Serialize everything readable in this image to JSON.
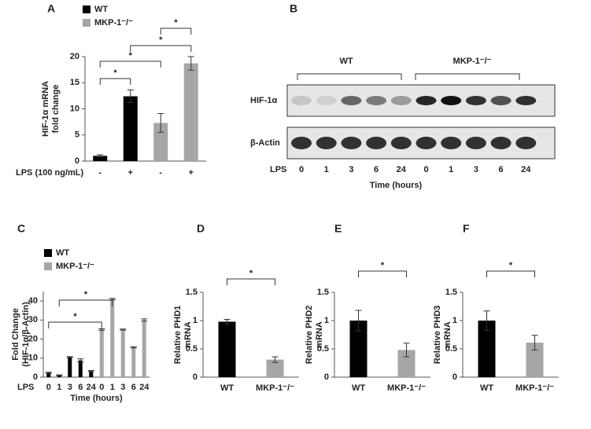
{
  "chart_data": [
    {
      "type": "bar",
      "panel_label": "A",
      "ylabel": [
        "HIF-1α mRNA",
        "fold change"
      ],
      "x_label": "LPS (100 ng/mL)",
      "categories": [
        "-",
        "+",
        "-",
        "+"
      ],
      "series": [
        {
          "name": "WT",
          "color": "#000000",
          "values": [
            1.0,
            12.4,
            null,
            null
          ],
          "errors": [
            0.2,
            1.2,
            null,
            null
          ]
        },
        {
          "name": "MKP-1⁻/⁻",
          "color": "#a6a6a6",
          "values": [
            null,
            null,
            7.3,
            18.7
          ],
          "errors": [
            null,
            null,
            1.8,
            1.3
          ]
        }
      ],
      "ylim": [
        0,
        20
      ],
      "yticks": [
        0,
        5,
        10,
        15,
        20
      ],
      "annotations": [
        "*",
        "*",
        "*",
        "*"
      ]
    },
    {
      "type": "blot",
      "panel_label": "B",
      "groups": [
        "WT",
        "MKP-1⁻/⁻"
      ],
      "rows": [
        "HIF-1α",
        "β-Actin"
      ],
      "x_label": "LPS",
      "lanes": [
        "0",
        "1",
        "3",
        "6",
        "24",
        "0",
        "1",
        "3",
        "6",
        "24"
      ],
      "xlabel": "Time (hours)"
    },
    {
      "type": "bar",
      "panel_label": "C",
      "ylabel": [
        "Fold Change",
        "(HIF-1α/β-Actin)"
      ],
      "x_label": "LPS",
      "xlabel": "Time (hours)",
      "categories": [
        "0",
        "1",
        "3",
        "6",
        "24",
        "0",
        "1",
        "3",
        "6",
        "24"
      ],
      "series": [
        {
          "name": "WT",
          "color": "#000000",
          "values": [
            2.3,
            1.0,
            10.5,
            8.8,
            3.2,
            null,
            null,
            null,
            null,
            null
          ],
          "errors": [
            0.3,
            0.2,
            0.3,
            0.8,
            0.3,
            null,
            null,
            null,
            null,
            null
          ]
        },
        {
          "name": "MKP-1⁻/⁻",
          "color": "#a6a6a6",
          "values": [
            null,
            null,
            null,
            null,
            null,
            25,
            41,
            25,
            15.7,
            30
          ],
          "errors": [
            null,
            null,
            null,
            null,
            null,
            0.4,
            0.4,
            0.3,
            0.3,
            0.6
          ]
        }
      ],
      "ylim": [
        0,
        45
      ],
      "yticks": [
        0,
        10,
        20,
        30,
        40
      ],
      "annotations": [
        "*",
        "*"
      ]
    },
    {
      "type": "bar",
      "panel_label": "D",
      "ylabel": [
        "Relative PHD1",
        "mRNA"
      ],
      "categories": [
        "WT",
        "MKP-1⁻/⁻"
      ],
      "values": [
        0.98,
        0.31
      ],
      "errors": [
        0.04,
        0.05
      ],
      "colors": [
        "#000000",
        "#a6a6a6"
      ],
      "ylim": [
        0,
        1.5
      ],
      "yticks": [
        0,
        0.5,
        1,
        1.5
      ],
      "annotations": [
        "*"
      ]
    },
    {
      "type": "bar",
      "panel_label": "E",
      "ylabel": [
        "Relative PHD2",
        "mRNA"
      ],
      "categories": [
        "WT",
        "MKP-1⁻/⁻"
      ],
      "values": [
        1.0,
        0.48
      ],
      "errors": [
        0.18,
        0.12
      ],
      "colors": [
        "#000000",
        "#a6a6a6"
      ],
      "ylim": [
        0,
        1.5
      ],
      "yticks": [
        0,
        0.5,
        1,
        1.5
      ],
      "annotations": [
        "*"
      ]
    },
    {
      "type": "bar",
      "panel_label": "F",
      "ylabel": [
        "Relative PHD3",
        "mRNA"
      ],
      "categories": [
        "WT",
        "MKP-1⁻/⁻"
      ],
      "values": [
        1.0,
        0.61
      ],
      "errors": [
        0.17,
        0.13
      ],
      "colors": [
        "#000000",
        "#a6a6a6"
      ],
      "ylim": [
        0,
        1.5
      ],
      "yticks": [
        0,
        0.5,
        1,
        1.5
      ],
      "annotations": [
        "*"
      ]
    }
  ]
}
